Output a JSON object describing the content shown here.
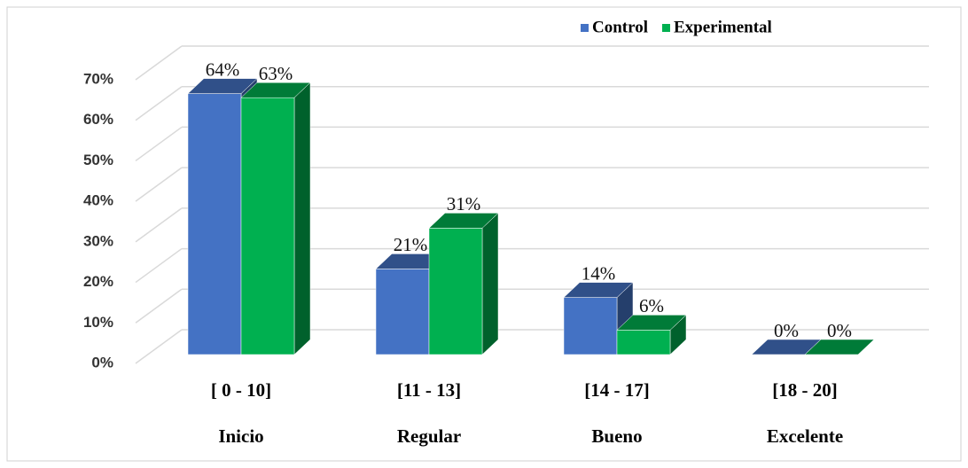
{
  "chart_data": {
    "type": "bar3d",
    "categories": [
      "[ 0 - 10]",
      "[11 - 13]",
      "[14 - 17]",
      "[18 - 20]"
    ],
    "category_names": [
      "Inicio",
      "Regular",
      "Bueno",
      "Excelente"
    ],
    "series": [
      {
        "name": "Control",
        "color": "#4472c4",
        "values": [
          64,
          21,
          14,
          0
        ],
        "value_labels": [
          "64%",
          "21%",
          "14%",
          "0%"
        ]
      },
      {
        "name": "Experimental",
        "color": "#00b050",
        "values": [
          63,
          31,
          6,
          0
        ],
        "value_labels": [
          "63%",
          "31%",
          "6%",
          "0%"
        ]
      }
    ],
    "ylim": [
      0,
      70
    ],
    "yticks": [
      {
        "value": 0,
        "label": "0%"
      },
      {
        "value": 10,
        "label": "10%"
      },
      {
        "value": 20,
        "label": "20%"
      },
      {
        "value": 30,
        "label": "30%"
      },
      {
        "value": 40,
        "label": "40%"
      },
      {
        "value": 50,
        "label": "50%"
      },
      {
        "value": 60,
        "label": "60%"
      },
      {
        "value": 70,
        "label": "70%"
      }
    ],
    "grid": true,
    "legend": "top"
  }
}
